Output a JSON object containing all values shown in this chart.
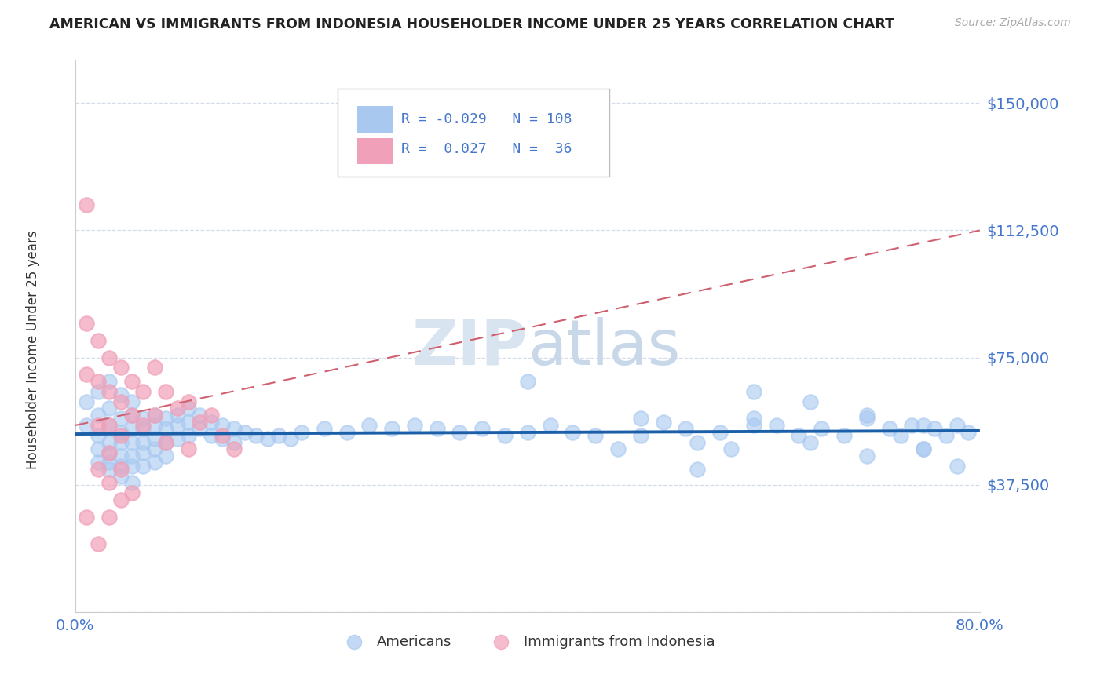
{
  "title": "AMERICAN VS IMMIGRANTS FROM INDONESIA HOUSEHOLDER INCOME UNDER 25 YEARS CORRELATION CHART",
  "source": "Source: ZipAtlas.com",
  "ylabel": "Householder Income Under 25 years",
  "xlim": [
    0.0,
    0.8
  ],
  "ylim": [
    0,
    162500
  ],
  "yticks": [
    0,
    37500,
    75000,
    112500,
    150000
  ],
  "ytick_labels": [
    "",
    "$37,500",
    "$75,000",
    "$112,500",
    "$150,000"
  ],
  "xticks": [
    0.0,
    0.1,
    0.2,
    0.3,
    0.4,
    0.5,
    0.6,
    0.7,
    0.8
  ],
  "american_R": -0.029,
  "american_N": 108,
  "indonesia_R": 0.027,
  "indonesia_N": 36,
  "american_color": "#a8c8f0",
  "indonesia_color": "#f0a0b8",
  "american_line_color": "#1a5fa8",
  "indonesia_line_color": "#d06070",
  "grid_color": "#d0d8e8",
  "background_color": "#ffffff",
  "watermark_color": "#d8e4f0",
  "label_color": "#4477cc",
  "title_color": "#222222",
  "am_x": [
    0.01,
    0.01,
    0.02,
    0.02,
    0.02,
    0.02,
    0.02,
    0.03,
    0.03,
    0.03,
    0.03,
    0.03,
    0.03,
    0.03,
    0.04,
    0.04,
    0.04,
    0.04,
    0.04,
    0.04,
    0.04,
    0.05,
    0.05,
    0.05,
    0.05,
    0.05,
    0.05,
    0.05,
    0.06,
    0.06,
    0.06,
    0.06,
    0.06,
    0.07,
    0.07,
    0.07,
    0.07,
    0.07,
    0.08,
    0.08,
    0.08,
    0.08,
    0.09,
    0.09,
    0.09,
    0.1,
    0.1,
    0.1,
    0.11,
    0.11,
    0.12,
    0.12,
    0.13,
    0.13,
    0.14,
    0.14,
    0.15,
    0.16,
    0.17,
    0.18,
    0.19,
    0.2,
    0.22,
    0.24,
    0.26,
    0.28,
    0.3,
    0.32,
    0.34,
    0.36,
    0.38,
    0.4,
    0.4,
    0.42,
    0.44,
    0.46,
    0.48,
    0.5,
    0.5,
    0.52,
    0.54,
    0.55,
    0.57,
    0.58,
    0.6,
    0.62,
    0.64,
    0.66,
    0.68,
    0.7,
    0.72,
    0.73,
    0.74,
    0.75,
    0.76,
    0.77,
    0.78,
    0.79,
    0.55,
    0.6,
    0.65,
    0.7,
    0.75,
    0.78,
    0.6,
    0.65,
    0.7,
    0.75
  ],
  "am_y": [
    62000,
    55000,
    58000,
    52000,
    48000,
    65000,
    44000,
    60000,
    55000,
    50000,
    47000,
    44000,
    68000,
    42000,
    57000,
    53000,
    50000,
    46000,
    43000,
    40000,
    64000,
    62000,
    58000,
    54000,
    50000,
    46000,
    43000,
    38000,
    57000,
    54000,
    50000,
    47000,
    43000,
    58000,
    55000,
    51000,
    48000,
    44000,
    57000,
    54000,
    50000,
    46000,
    58000,
    55000,
    51000,
    60000,
    56000,
    52000,
    58000,
    54000,
    56000,
    52000,
    55000,
    51000,
    54000,
    50000,
    53000,
    52000,
    51000,
    52000,
    51000,
    53000,
    54000,
    53000,
    55000,
    54000,
    55000,
    54000,
    53000,
    54000,
    52000,
    53000,
    68000,
    55000,
    53000,
    52000,
    48000,
    57000,
    52000,
    56000,
    54000,
    50000,
    53000,
    48000,
    57000,
    55000,
    52000,
    54000,
    52000,
    57000,
    54000,
    52000,
    55000,
    48000,
    54000,
    52000,
    55000,
    53000,
    42000,
    55000,
    50000,
    46000,
    48000,
    43000,
    65000,
    62000,
    58000,
    55000
  ],
  "id_x": [
    0.01,
    0.01,
    0.01,
    0.01,
    0.02,
    0.02,
    0.02,
    0.02,
    0.02,
    0.03,
    0.03,
    0.03,
    0.03,
    0.03,
    0.03,
    0.04,
    0.04,
    0.04,
    0.04,
    0.04,
    0.05,
    0.05,
    0.05,
    0.06,
    0.06,
    0.07,
    0.07,
    0.08,
    0.08,
    0.09,
    0.1,
    0.1,
    0.11,
    0.12,
    0.13,
    0.14
  ],
  "id_y": [
    120000,
    85000,
    70000,
    28000,
    80000,
    68000,
    55000,
    42000,
    20000,
    75000,
    65000,
    55000,
    47000,
    38000,
    28000,
    72000,
    62000,
    52000,
    42000,
    33000,
    68000,
    58000,
    35000,
    65000,
    55000,
    72000,
    58000,
    65000,
    50000,
    60000,
    62000,
    48000,
    56000,
    58000,
    52000,
    48000
  ]
}
